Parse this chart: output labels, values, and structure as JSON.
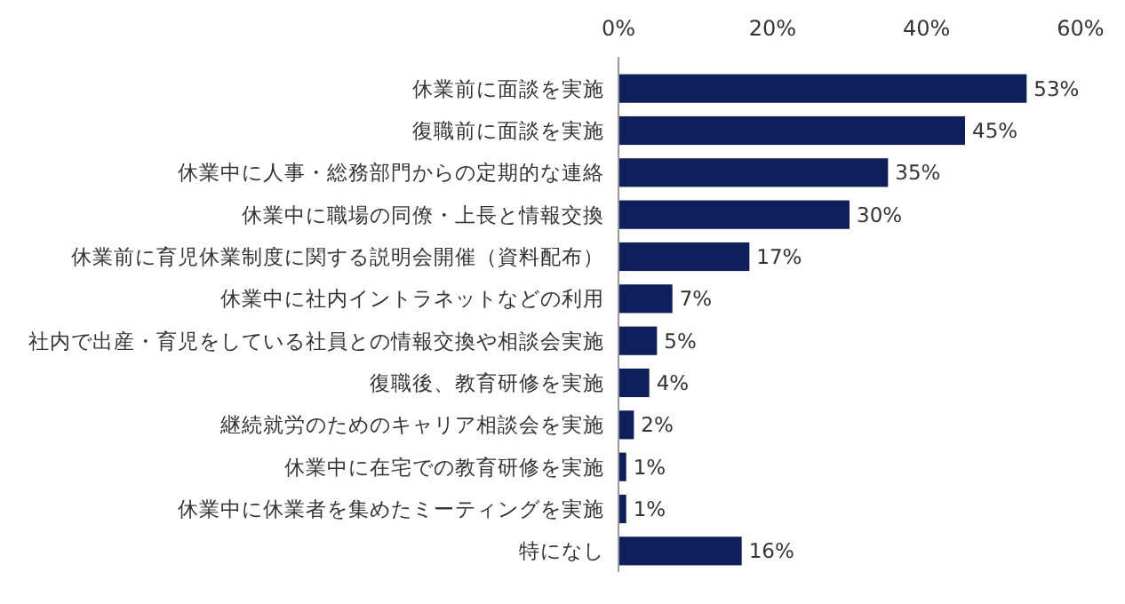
{
  "chart_data": {
    "type": "bar",
    "orientation": "horizontal",
    "categories": [
      "休業前に面談を実施",
      "復職前に面談を実施",
      "休業中に人事・総務部門からの定期的な連絡",
      "休業中に職場の同僚・上長と情報交換",
      "休業前に育児休業制度に関する説明会開催（資料配布）",
      "休業中に社内イントラネットなどの利用",
      "社内で出産・育児をしている社員との情報交換や相談会実施",
      "復職後、教育研修を実施",
      "継続就労のためのキャリア相談会を実施",
      "休業中に在宅での教育研修を実施",
      "休業中に休業者を集めたミーティングを実施",
      "特になし"
    ],
    "values": [
      53,
      45,
      35,
      30,
      17,
      7,
      5,
      4,
      2,
      1,
      1,
      16
    ],
    "value_labels": [
      "53%",
      "45%",
      "35%",
      "30%",
      "17%",
      "7%",
      "5%",
      "4%",
      "2%",
      "1%",
      "1%",
      "16%"
    ],
    "color": "#0e1f5b",
    "xlim": [
      0,
      60
    ],
    "xticks": [
      {
        "value": 0,
        "label": "0%"
      },
      {
        "value": 20,
        "label": "20%"
      },
      {
        "value": 40,
        "label": "40%"
      },
      {
        "value": 60,
        "label": "60%"
      }
    ],
    "grid": false
  }
}
